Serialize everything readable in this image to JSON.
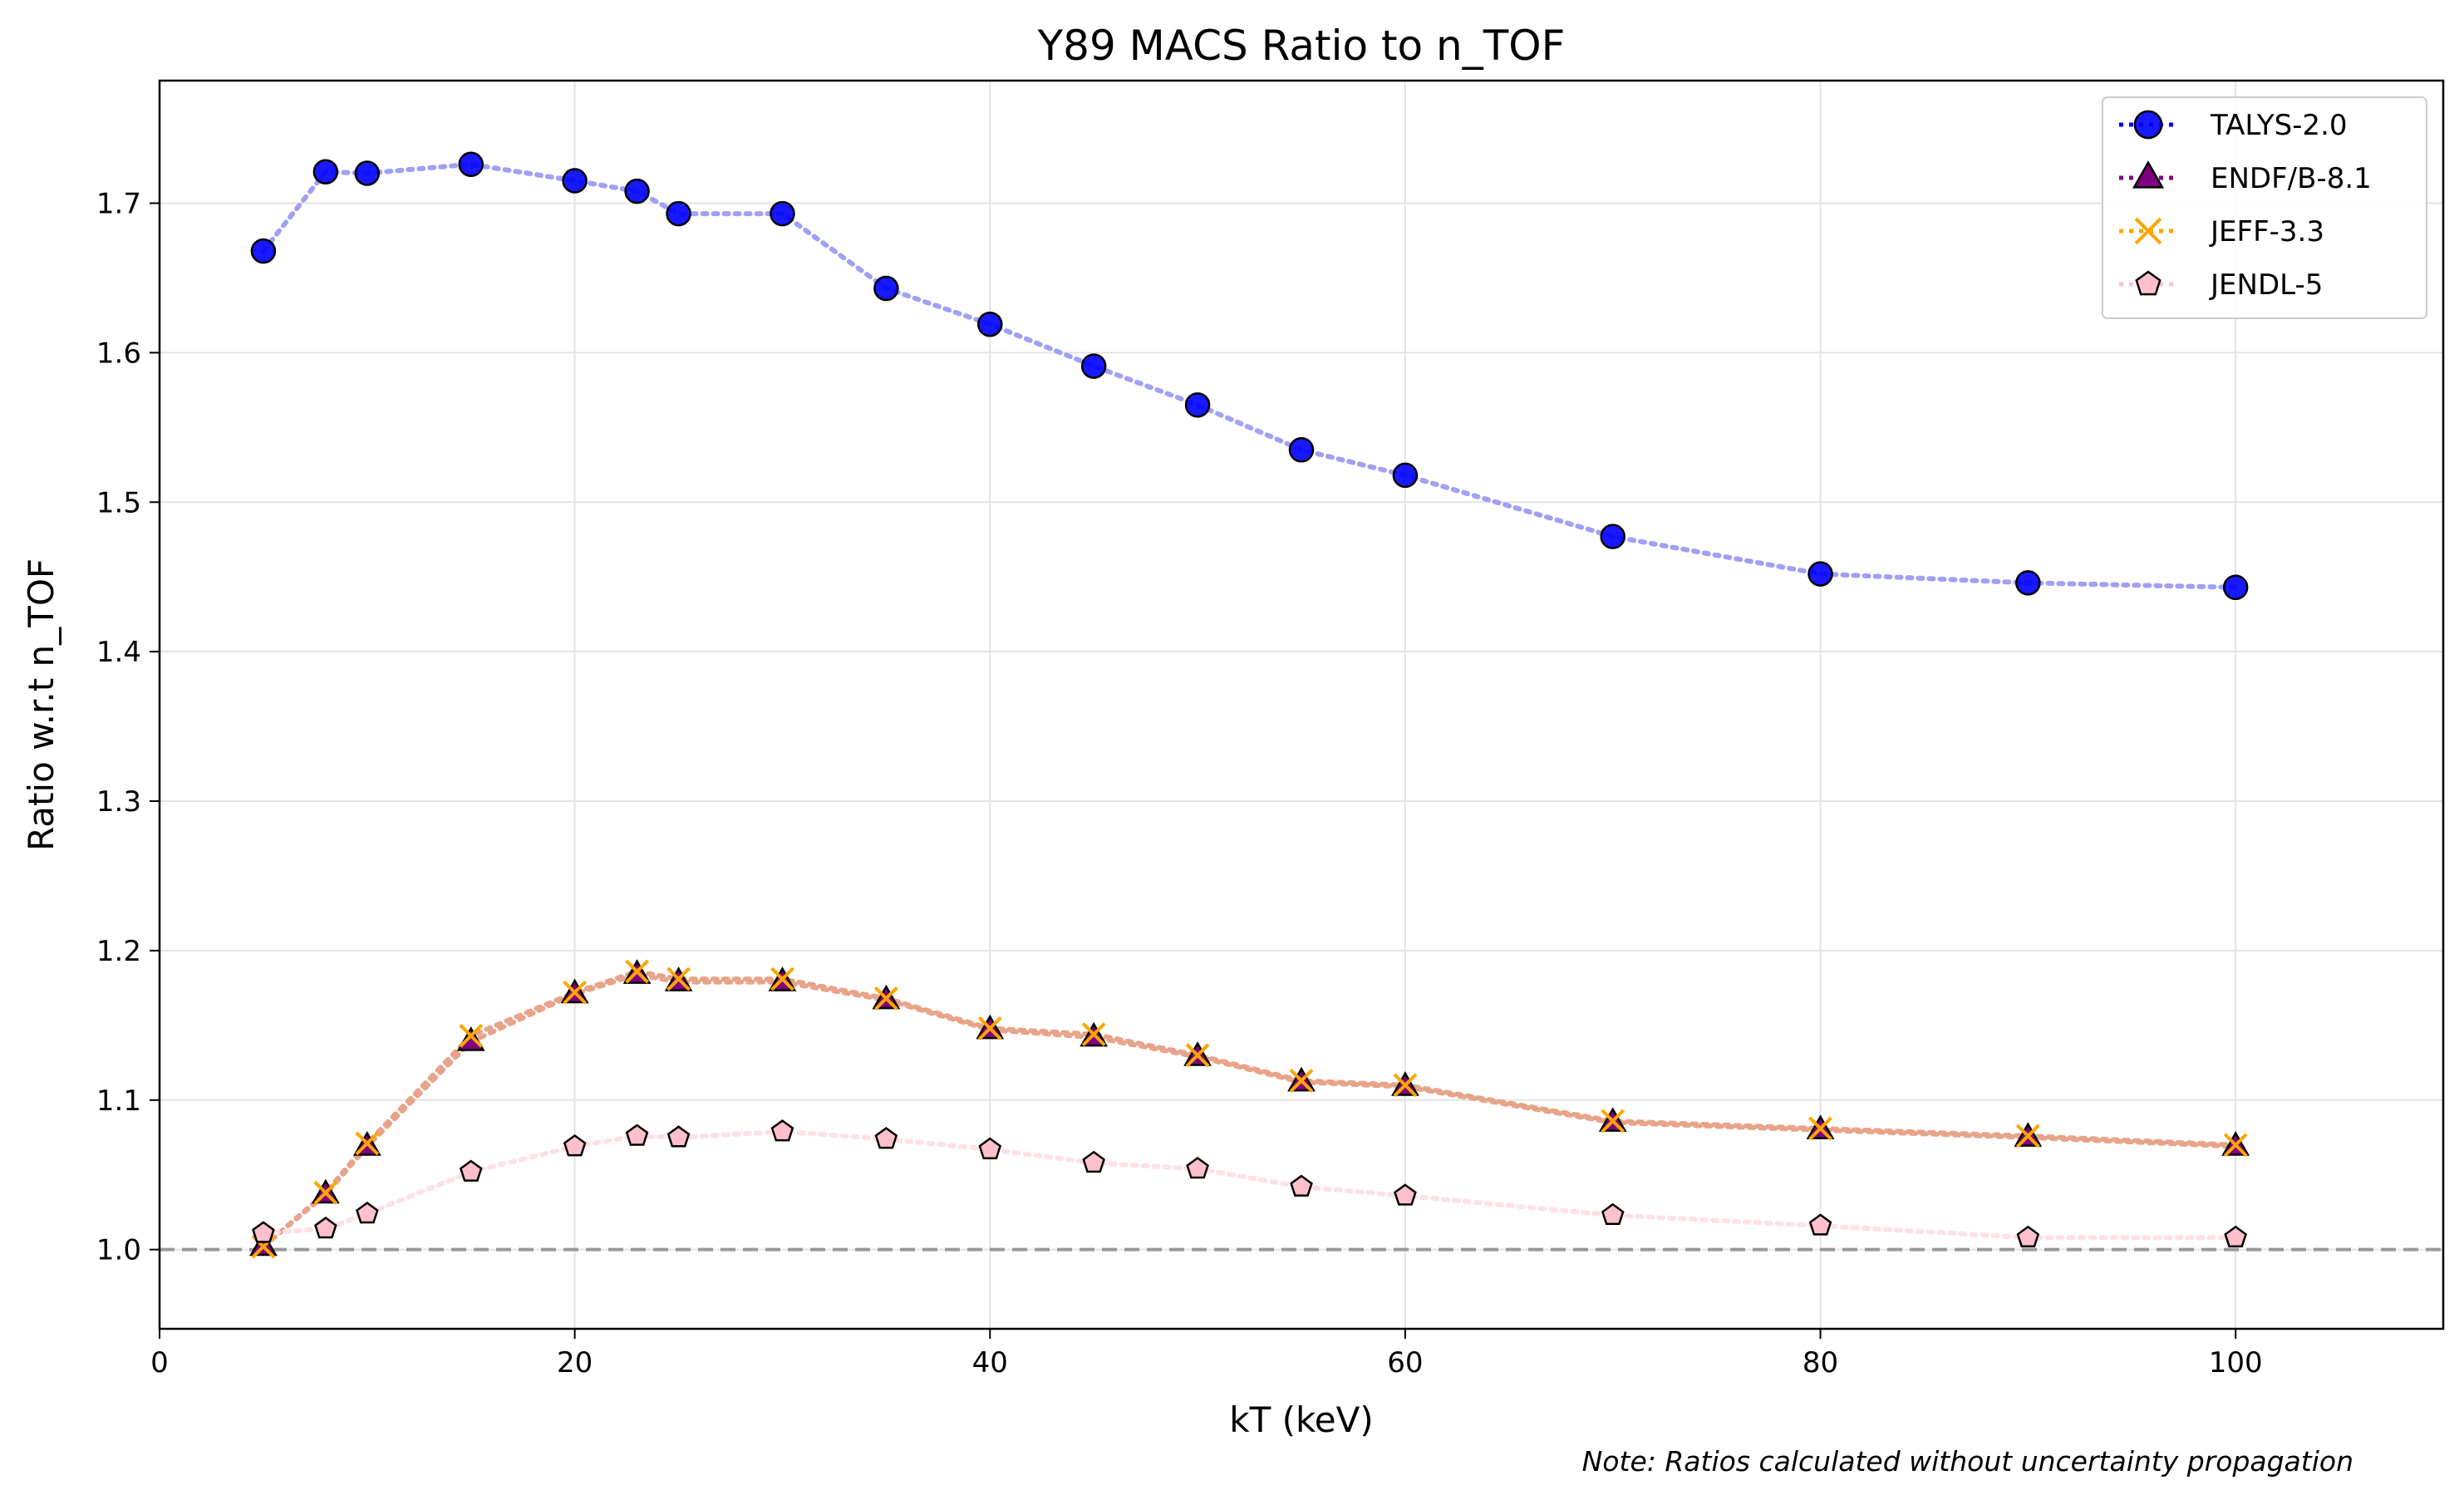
{
  "chart_data": {
    "type": "line",
    "title": "Y89 MACS Ratio to n_TOF",
    "xlabel": "kT (keV)",
    "ylabel": "Ratio w.r.t n_TOF",
    "note": "Note: Ratios calculated without uncertainty propagation",
    "xlim": [
      0,
      110
    ],
    "ylim": [
      0.947,
      1.782
    ],
    "xticks": [
      0,
      20,
      40,
      60,
      80,
      100
    ],
    "yticks": [
      1.0,
      1.1,
      1.2,
      1.3,
      1.4,
      1.5,
      1.6,
      1.7
    ],
    "xtick_labels": [
      "0",
      "20",
      "40",
      "60",
      "80",
      "100"
    ],
    "ytick_labels": [
      "1.0",
      "1.1",
      "1.2",
      "1.3",
      "1.4",
      "1.5",
      "1.6",
      "1.7"
    ],
    "grid": true,
    "legend_position": "top-right",
    "reference_line": 1.0,
    "x": [
      5,
      8,
      10,
      15,
      20,
      23,
      25,
      30,
      35,
      40,
      45,
      50,
      55,
      60,
      70,
      80,
      90,
      100
    ],
    "series": [
      {
        "name": "TALYS-2.0",
        "marker": "circle",
        "color": "#0000ff",
        "line_color": "#a0a0f5",
        "values": [
          1.668,
          1.721,
          1.72,
          1.726,
          1.715,
          1.708,
          1.693,
          1.693,
          1.643,
          1.619,
          1.591,
          1.565,
          1.535,
          1.518,
          1.477,
          1.452,
          1.446,
          1.443
        ]
      },
      {
        "name": "ENDF/B-8.1",
        "marker": "triangle",
        "color": "#800080",
        "line_color": "#e8a48a",
        "values": [
          1.002,
          1.037,
          1.069,
          1.139,
          1.171,
          1.184,
          1.179,
          1.179,
          1.167,
          1.147,
          1.142,
          1.129,
          1.112,
          1.109,
          1.085,
          1.08,
          1.075,
          1.069
        ]
      },
      {
        "name": "JEFF-3.3",
        "marker": "x",
        "color": "#ffa500",
        "line_color": "#e8a48a",
        "values": [
          1.002,
          1.038,
          1.071,
          1.143,
          1.172,
          1.186,
          1.181,
          1.181,
          1.168,
          1.148,
          1.144,
          1.13,
          1.113,
          1.11,
          1.086,
          1.081,
          1.076,
          1.07
        ]
      },
      {
        "name": "JENDL-5",
        "marker": "pentagon",
        "color": "#ffc0cb",
        "line_color": "#ffe0e6",
        "values": [
          1.011,
          1.014,
          1.024,
          1.052,
          1.069,
          1.076,
          1.075,
          1.079,
          1.074,
          1.067,
          1.058,
          1.054,
          1.042,
          1.036,
          1.023,
          1.016,
          1.008,
          1.008
        ]
      }
    ]
  }
}
